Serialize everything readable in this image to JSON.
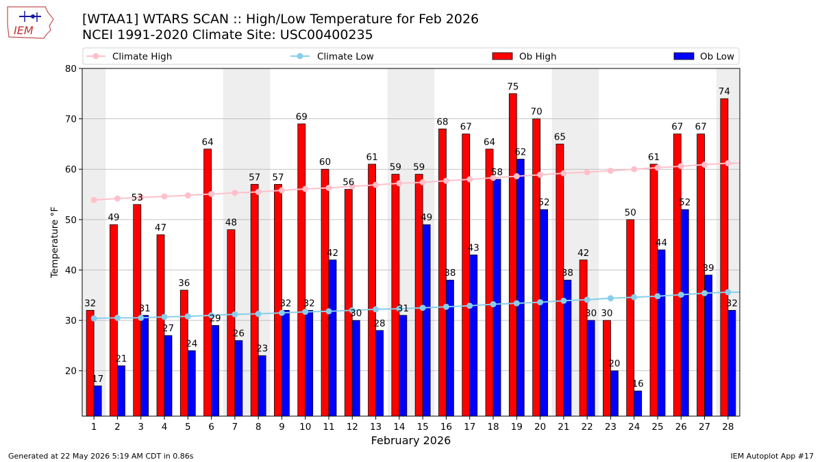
{
  "header": {
    "title_line1": "[WTAA1] WTARS SCAN :: High/Low Temperature for Feb 2026",
    "title_line2": "NCEI 1991-2020 Climate Site: USC00400235",
    "logo_text": "IEM"
  },
  "footer": {
    "generated": "Generated at 22 May 2026 5:19 AM CDT in 0.86s",
    "app": "IEM Autoplot App #17"
  },
  "colors": {
    "ob_high": "#ff0000",
    "ob_low": "#0000ff",
    "climate_high": "#ffc0cb",
    "climate_low": "#87ceeb",
    "weekend_shade": "#eeeeee"
  },
  "chart_data": {
    "type": "bar",
    "xlabel": "February 2026",
    "ylabel": "Temperature °F",
    "ylim": [
      11,
      80
    ],
    "yticks": [
      20,
      30,
      40,
      50,
      60,
      70,
      80
    ],
    "grid": true,
    "legend_position": "top",
    "categories": [
      "1",
      "2",
      "3",
      "4",
      "5",
      "6",
      "7",
      "8",
      "9",
      "10",
      "11",
      "12",
      "13",
      "14",
      "15",
      "16",
      "17",
      "18",
      "19",
      "20",
      "21",
      "22",
      "23",
      "24",
      "25",
      "26",
      "27",
      "28"
    ],
    "shaded_days": [
      1,
      7,
      8,
      14,
      15,
      21,
      22,
      28
    ],
    "series": [
      {
        "name": "Climate High",
        "kind": "line",
        "values": [
          53.9,
          54.2,
          54.4,
          54.6,
          54.8,
          55.1,
          55.3,
          55.5,
          55.8,
          56.1,
          56.3,
          56.6,
          56.9,
          57.2,
          57.4,
          57.7,
          58.0,
          58.3,
          58.6,
          58.9,
          59.2,
          59.4,
          59.7,
          60.0,
          60.3,
          60.6,
          60.9,
          61.2
        ]
      },
      {
        "name": "Climate Low",
        "kind": "line",
        "values": [
          30.4,
          30.5,
          30.5,
          30.7,
          30.8,
          31.0,
          31.2,
          31.3,
          31.5,
          31.7,
          31.8,
          32.0,
          32.2,
          32.3,
          32.5,
          32.7,
          32.9,
          33.2,
          33.4,
          33.6,
          33.9,
          34.1,
          34.4,
          34.6,
          34.8,
          35.1,
          35.4,
          35.6
        ]
      },
      {
        "name": "Ob High",
        "kind": "bar",
        "values": [
          32,
          49,
          53,
          47,
          36,
          64,
          48,
          57,
          57,
          69,
          60,
          56,
          61,
          59,
          59,
          68,
          67,
          64,
          75,
          70,
          65,
          42,
          30,
          50,
          61,
          67,
          67,
          74
        ]
      },
      {
        "name": "Ob Low",
        "kind": "bar",
        "values": [
          17,
          21,
          31,
          27,
          24,
          29,
          26,
          23,
          32,
          32,
          42,
          30,
          28,
          31,
          49,
          38,
          43,
          58,
          62,
          52,
          38,
          30,
          20,
          16,
          44,
          52,
          39,
          32
        ]
      }
    ]
  }
}
